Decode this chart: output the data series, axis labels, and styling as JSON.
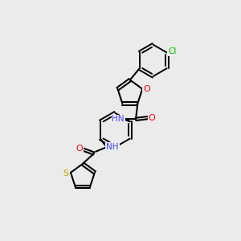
{
  "background_color": "#ebebeb",
  "bond_color": "#000000",
  "atom_colors": {
    "O": "#ff0000",
    "N": "#4444ff",
    "S": "#ccaa00",
    "Cl": "#00bb00",
    "C": "#000000"
  },
  "figsize": [
    3.0,
    3.0
  ],
  "dpi": 100
}
